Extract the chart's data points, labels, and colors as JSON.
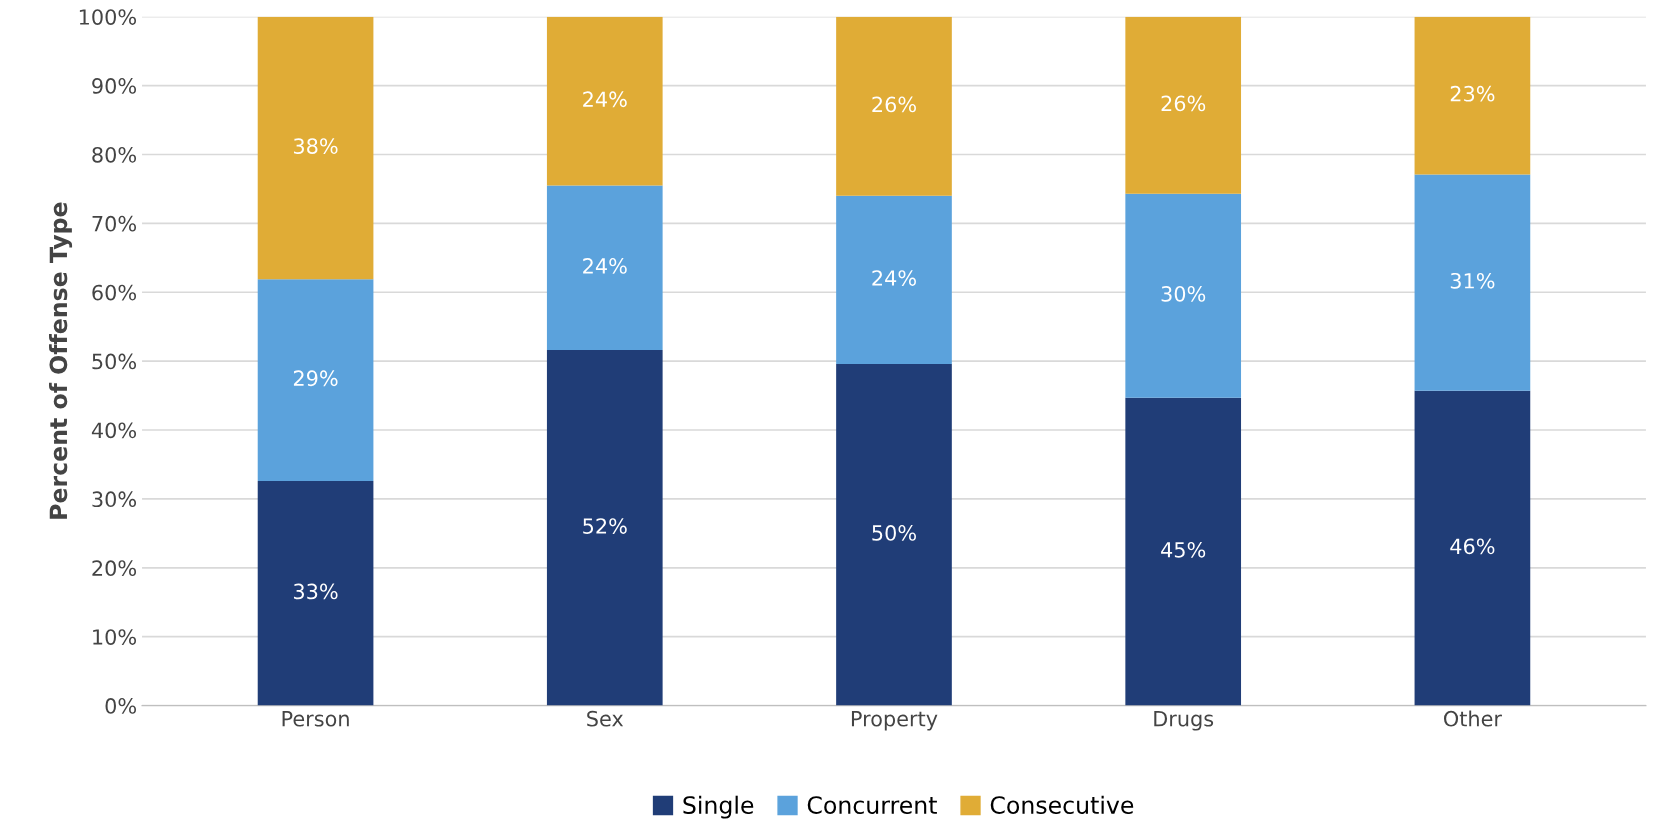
{
  "chart_data": {
    "type": "bar",
    "stacked": true,
    "ylabel": "Percent of Offense Type",
    "categories": [
      "Person",
      "Sex",
      "Property",
      "Drugs",
      "Other"
    ],
    "series": [
      {
        "name": "Single",
        "color": "#203d77",
        "values": [
          32.6,
          51.6,
          49.6,
          44.7,
          45.7
        ],
        "value_labels": [
          "33%",
          "52%",
          "50%",
          "45%",
          "46%"
        ]
      },
      {
        "name": "Concurrent",
        "color": "#5ba2dc",
        "values": [
          29.3,
          23.9,
          24.4,
          29.6,
          31.4
        ],
        "value_labels": [
          "29%",
          "24%",
          "24%",
          "30%",
          "31%"
        ]
      },
      {
        "name": "Consecutive",
        "color": "#e0ac36",
        "values": [
          38.1,
          24.5,
          26.0,
          25.7,
          22.9
        ],
        "value_labels": [
          "38%",
          "24%",
          "26%",
          "26%",
          "23%"
        ]
      }
    ],
    "ylim": [
      0,
      100
    ],
    "yticks": [
      {
        "value": 0,
        "label": "0%"
      },
      {
        "value": 10,
        "label": "10%"
      },
      {
        "value": 20,
        "label": "20%"
      },
      {
        "value": 30,
        "label": "30%"
      },
      {
        "value": 40,
        "label": "40%"
      },
      {
        "value": 50,
        "label": "50%"
      },
      {
        "value": 60,
        "label": "60%"
      },
      {
        "value": 70,
        "label": "70%"
      },
      {
        "value": 80,
        "label": "80%"
      },
      {
        "value": 90,
        "label": "90%"
      },
      {
        "value": 100,
        "label": "100%"
      }
    ],
    "grid": "y",
    "legend": "bottom"
  }
}
